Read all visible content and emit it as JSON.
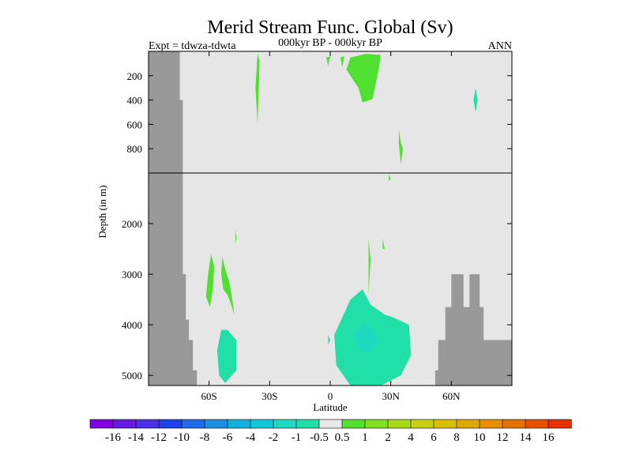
{
  "chart_data": {
    "type": "heatmap",
    "title": "Merid Stream Func. Global (Sv)",
    "left_string": "Expt = tdwza-tdwta",
    "center_string": "000kyr BP - 000kyr BP",
    "right_string": "ANN",
    "xlabel": "Latitude",
    "ylabel": "Depth (in m)",
    "xlim": [
      -90,
      90
    ],
    "x_ticks": [
      {
        "value": -60,
        "label": "60S"
      },
      {
        "value": -30,
        "label": "30S"
      },
      {
        "value": 0,
        "label": "0"
      },
      {
        "value": 30,
        "label": "30N"
      },
      {
        "value": 60,
        "label": "60N"
      }
    ],
    "upper_panel": {
      "ylim": [
        0,
        1000
      ],
      "y_ticks": [
        200,
        400,
        600,
        800
      ],
      "y_tick_labels": [
        "200",
        "400",
        "600",
        "800"
      ]
    },
    "lower_panel": {
      "ylim": [
        1000,
        5200
      ],
      "y_ticks": [
        2000,
        3000,
        4000,
        5000
      ],
      "y_tick_labels": [
        "2000",
        "3000",
        "4000",
        "5000"
      ]
    },
    "background_color": "#e6e6e6",
    "land_color": "#999999",
    "colorbar": {
      "colors": [
        "#8000e0",
        "#6a1ae0",
        "#4a2ee8",
        "#2040e8",
        "#1f6ae8",
        "#1a90e0",
        "#10b0e0",
        "#10c8d8",
        "#20d8c0",
        "#20e0a8",
        "#e8e8e8",
        "#50e030",
        "#80e020",
        "#a8d818",
        "#c8d010",
        "#d8c000",
        "#e0a800",
        "#e89000",
        "#e87000",
        "#e85000",
        "#e83000"
      ],
      "labels": [
        "-16",
        "-14",
        "-12",
        "-10",
        "-8",
        "-6",
        "-4",
        "-2",
        "-1",
        "-0.5",
        "0.5",
        "1",
        "2",
        "4",
        "6",
        "8",
        "10",
        "12",
        "14",
        "16"
      ]
    },
    "land_bathymetry": [
      {
        "lat": -90,
        "depth": 0
      },
      {
        "lat": -74.5,
        "depth": 0
      },
      {
        "lat": -74.5,
        "depth": 400
      },
      {
        "lat": -73,
        "depth": 400
      },
      {
        "lat": -73,
        "depth": 3000
      },
      {
        "lat": -71.5,
        "depth": 3000
      },
      {
        "lat": -71.5,
        "depth": 3900
      },
      {
        "lat": -70,
        "depth": 3900
      },
      {
        "lat": -70,
        "depth": 4300
      },
      {
        "lat": -68,
        "depth": 4300
      },
      {
        "lat": -68,
        "depth": 4900
      },
      {
        "lat": -66,
        "depth": 4900
      },
      {
        "lat": -66,
        "depth": 5200
      },
      {
        "lat": -90,
        "depth": 5200
      }
    ],
    "land_north": [
      {
        "lat": 90,
        "depth": 5200
      },
      {
        "lat": 52,
        "depth": 5200
      },
      {
        "lat": 52,
        "depth": 4900
      },
      {
        "lat": 53.5,
        "depth": 4900
      },
      {
        "lat": 53.5,
        "depth": 4300
      },
      {
        "lat": 57,
        "depth": 4300
      },
      {
        "lat": 57,
        "depth": 3650
      },
      {
        "lat": 60,
        "depth": 3650
      },
      {
        "lat": 60,
        "depth": 3000
      },
      {
        "lat": 66,
        "depth": 3000
      },
      {
        "lat": 66,
        "depth": 3650
      },
      {
        "lat": 69,
        "depth": 3650
      },
      {
        "lat": 69,
        "depth": 3000
      },
      {
        "lat": 74,
        "depth": 3000
      },
      {
        "lat": 74,
        "depth": 3650
      },
      {
        "lat": 76,
        "depth": 3650
      },
      {
        "lat": 76,
        "depth": 4300
      },
      {
        "lat": 90,
        "depth": 4300
      }
    ],
    "contours": [
      {
        "level": "0.5 to 1",
        "color": "#50e030",
        "points": [
          [
            8,
            150
          ],
          [
            10,
            50
          ],
          [
            18,
            20
          ],
          [
            25,
            30
          ],
          [
            24,
            150
          ],
          [
            21,
            390
          ],
          [
            16,
            420
          ],
          [
            14,
            300
          ]
        ]
      },
      {
        "level": "0.5 to 1",
        "color": "#50e030",
        "points": [
          [
            -2,
            50
          ],
          [
            0,
            40
          ],
          [
            -1,
            120
          ]
        ]
      },
      {
        "level": "0.5 to 1",
        "color": "#50e030",
        "points": [
          [
            5,
            50
          ],
          [
            7,
            40
          ],
          [
            6,
            130
          ]
        ]
      },
      {
        "level": "0.5 to 1",
        "color": "#50e030",
        "points": [
          [
            -36,
            20
          ],
          [
            -35,
            80
          ],
          [
            -35.5,
            350
          ],
          [
            -36,
            590
          ],
          [
            -37,
            300
          ]
        ]
      },
      {
        "level": "0.5 to 1",
        "color": "#50e030",
        "points": [
          [
            34,
            640
          ],
          [
            35,
            750
          ],
          [
            36,
            800
          ],
          [
            35,
            930
          ],
          [
            34,
            760
          ]
        ]
      },
      {
        "level": "0.5 to 1",
        "color": "#50e030",
        "points": [
          [
            29,
            1030
          ],
          [
            30,
            1120
          ],
          [
            29,
            1150
          ]
        ]
      },
      {
        "level": "0.5 to 1",
        "color": "#50e030",
        "points": [
          [
            -59,
            2600
          ],
          [
            -57.5,
            2850
          ],
          [
            -58,
            3250
          ],
          [
            -59.5,
            3650
          ],
          [
            -61.5,
            3450
          ],
          [
            -60.5,
            3000
          ]
        ]
      },
      {
        "level": "0.5 to 1",
        "color": "#50e030",
        "points": [
          [
            -53.5,
            2650
          ],
          [
            -52,
            2900
          ],
          [
            -50,
            3150
          ],
          [
            -48.5,
            3500
          ],
          [
            -47.5,
            3800
          ],
          [
            -49.5,
            3550
          ],
          [
            -51,
            3400
          ],
          [
            -53,
            3300
          ],
          [
            -54,
            3000
          ]
        ]
      },
      {
        "level": "0.5 to 1",
        "color": "#50e030",
        "points": [
          [
            -47,
            2100
          ],
          [
            -46.5,
            2300
          ],
          [
            -47,
            2400
          ]
        ]
      },
      {
        "level": "-0.5 to -1",
        "color": "#20e0a8",
        "points": [
          [
            -54,
            4100
          ],
          [
            -51,
            4100
          ],
          [
            -46.5,
            4300
          ],
          [
            -46.5,
            4900
          ],
          [
            -52,
            5150
          ],
          [
            -55,
            5000
          ],
          [
            -56,
            4500
          ]
        ]
      },
      {
        "level": "-0.5 to -1",
        "color": "#20e0a8",
        "points": [
          [
            2,
            4200
          ],
          [
            10,
            3500
          ],
          [
            16,
            3300
          ],
          [
            20,
            3600
          ],
          [
            27,
            3800
          ],
          [
            31,
            3850
          ],
          [
            39,
            4000
          ],
          [
            40,
            4600
          ],
          [
            35,
            5000
          ],
          [
            25,
            5200
          ],
          [
            10,
            5200
          ],
          [
            3,
            4800
          ]
        ]
      },
      {
        "level": "-0.5 to -1",
        "color": "#20e0a8",
        "points": [
          [
            -1,
            4200
          ],
          [
            0,
            4300
          ],
          [
            -1,
            4400
          ]
        ]
      },
      {
        "level": "-0.5 to -1",
        "color": "#20e0a8",
        "points": [
          [
            72,
            300
          ],
          [
            73,
            400
          ],
          [
            72,
            500
          ],
          [
            71,
            400
          ]
        ]
      },
      {
        "level": "0.5 to 1",
        "color": "#50e030",
        "points": [
          [
            19,
            2300
          ],
          [
            20,
            2700
          ],
          [
            19,
            3400
          ]
        ]
      },
      {
        "level": "0.5 to 1",
        "color": "#50e030",
        "points": [
          [
            26,
            2300
          ],
          [
            27,
            2500
          ],
          [
            26,
            2500
          ]
        ]
      },
      {
        "level": "-1 to -2",
        "color": "#20d8c0",
        "points": [
          [
            11,
            4200
          ],
          [
            16,
            3950
          ],
          [
            22,
            4150
          ],
          [
            24,
            4350
          ],
          [
            20,
            4550
          ],
          [
            14,
            4500
          ]
        ]
      }
    ]
  }
}
